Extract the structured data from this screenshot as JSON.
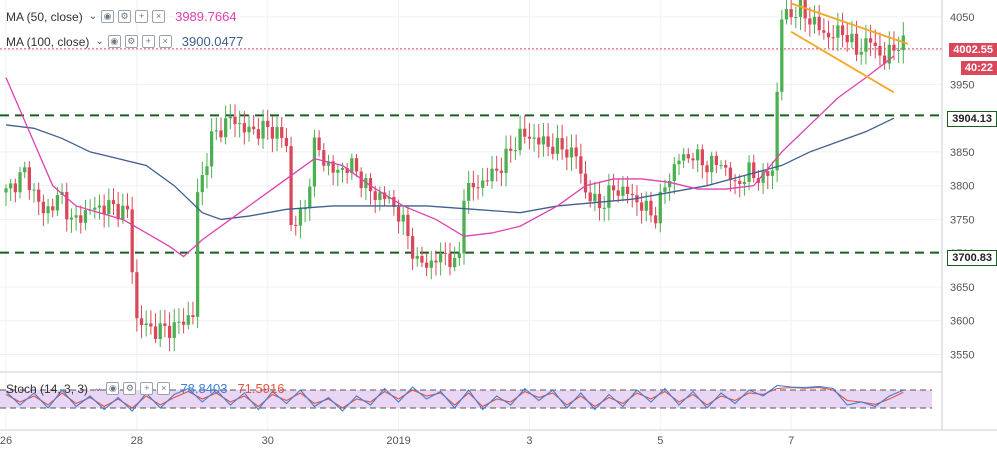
{
  "chart_data": {
    "type": "candlestick",
    "price_axis": {
      "ylim": [
        3530,
        4075
      ],
      "ticks": [
        3550,
        3600,
        3650,
        3700,
        3750,
        3800,
        3850,
        3900,
        3950,
        4000,
        4050
      ]
    },
    "time_axis": {
      "labels": [
        "26",
        "28",
        "30",
        "2019",
        "3",
        "5",
        "7"
      ]
    },
    "last_price": "4002.55",
    "countdown": "40:22",
    "support_resistance": [
      {
        "label": "3904.13",
        "value": 3904.13,
        "color": "#1b5e20"
      },
      {
        "label": "3700.83",
        "value": 3700.83,
        "color": "#1b5e20"
      }
    ],
    "moving_averages": [
      {
        "name": "MA (50, close)",
        "value": "3989.7664",
        "color": "#e040b0"
      },
      {
        "name": "MA (100, close)",
        "value": "3900.0477",
        "color": "#3f5f8f"
      }
    ],
    "price_path": [
      [
        0,
        3790
      ],
      [
        4,
        3820
      ],
      [
        8,
        3760
      ],
      [
        12,
        3785
      ],
      [
        14,
        3745
      ],
      [
        18,
        3765
      ],
      [
        22,
        3770
      ],
      [
        26,
        3760
      ],
      [
        28,
        3600
      ],
      [
        32,
        3585
      ],
      [
        36,
        3590
      ],
      [
        40,
        3610
      ],
      [
        41,
        3785
      ],
      [
        44,
        3870
      ],
      [
        48,
        3900
      ],
      [
        52,
        3880
      ],
      [
        55,
        3885
      ],
      [
        58,
        3880
      ],
      [
        60,
        3860
      ],
      [
        61,
        3740
      ],
      [
        64,
        3765
      ],
      [
        66,
        3860
      ],
      [
        70,
        3820
      ],
      [
        74,
        3830
      ],
      [
        78,
        3790
      ],
      [
        82,
        3780
      ],
      [
        85,
        3745
      ],
      [
        88,
        3685
      ],
      [
        91,
        3685
      ],
      [
        94,
        3700
      ],
      [
        96,
        3680
      ],
      [
        97,
        3700
      ],
      [
        98,
        3790
      ],
      [
        102,
        3805
      ],
      [
        106,
        3830
      ],
      [
        110,
        3875
      ],
      [
        113,
        3870
      ],
      [
        116,
        3860
      ],
      [
        119,
        3855
      ],
      [
        122,
        3845
      ],
      [
        124,
        3790
      ],
      [
        127,
        3770
      ],
      [
        130,
        3795
      ],
      [
        133,
        3790
      ],
      [
        136,
        3770
      ],
      [
        139,
        3755
      ],
      [
        141,
        3800
      ],
      [
        144,
        3840
      ],
      [
        147,
        3845
      ],
      [
        150,
        3830
      ],
      [
        153,
        3835
      ],
      [
        156,
        3800
      ],
      [
        159,
        3820
      ],
      [
        162,
        3810
      ],
      [
        164,
        3825
      ],
      [
        166,
        4050
      ],
      [
        170,
        4060
      ],
      [
        173,
        4040
      ],
      [
        176,
        4020
      ],
      [
        179,
        4030
      ],
      [
        182,
        4000
      ],
      [
        185,
        4015
      ],
      [
        188,
        3985
      ],
      [
        190,
        4008
      ]
    ],
    "ma50": [
      [
        0,
        3960
      ],
      [
        5,
        3880
      ],
      [
        10,
        3800
      ],
      [
        15,
        3770
      ],
      [
        20,
        3760
      ],
      [
        25,
        3750
      ],
      [
        30,
        3730
      ],
      [
        35,
        3710
      ],
      [
        38,
        3695
      ],
      [
        42,
        3720
      ],
      [
        50,
        3760
      ],
      [
        58,
        3800
      ],
      [
        66,
        3840
      ],
      [
        72,
        3830
      ],
      [
        78,
        3800
      ],
      [
        85,
        3770
      ],
      [
        92,
        3750
      ],
      [
        98,
        3725
      ],
      [
        104,
        3730
      ],
      [
        110,
        3740
      ],
      [
        118,
        3770
      ],
      [
        124,
        3800
      ],
      [
        130,
        3810
      ],
      [
        136,
        3810
      ],
      [
        142,
        3805
      ],
      [
        148,
        3795
      ],
      [
        154,
        3795
      ],
      [
        160,
        3800
      ],
      [
        166,
        3850
      ],
      [
        172,
        3890
      ],
      [
        178,
        3930
      ],
      [
        184,
        3960
      ],
      [
        190,
        3992
      ]
    ],
    "ma100": [
      [
        0,
        3890
      ],
      [
        6,
        3885
      ],
      [
        12,
        3870
      ],
      [
        18,
        3850
      ],
      [
        24,
        3840
      ],
      [
        30,
        3830
      ],
      [
        36,
        3800
      ],
      [
        42,
        3760
      ],
      [
        46,
        3750
      ],
      [
        52,
        3755
      ],
      [
        60,
        3765
      ],
      [
        70,
        3770
      ],
      [
        80,
        3770
      ],
      [
        90,
        3770
      ],
      [
        100,
        3765
      ],
      [
        110,
        3760
      ],
      [
        118,
        3770
      ],
      [
        126,
        3775
      ],
      [
        134,
        3780
      ],
      [
        142,
        3790
      ],
      [
        150,
        3800
      ],
      [
        158,
        3815
      ],
      [
        166,
        3830
      ],
      [
        172,
        3850
      ],
      [
        178,
        3865
      ],
      [
        184,
        3880
      ],
      [
        190,
        3900
      ]
    ],
    "channel": [
      {
        "from": [
          168,
          4070
        ],
        "to": [
          193,
          4010
        ]
      },
      {
        "from": [
          168,
          4028
        ],
        "to": [
          190,
          3938
        ]
      }
    ],
    "stochastic": {
      "name": "Stoch (14, 3, 3)",
      "k_value": "78.8403",
      "d_value": "71.5916",
      "k_color": "#3f7fd6",
      "d_color": "#e5533d",
      "ylim": [
        0,
        100
      ],
      "bands": [
        20,
        80
      ],
      "k": [
        [
          0,
          75
        ],
        [
          3,
          30
        ],
        [
          6,
          70
        ],
        [
          9,
          20
        ],
        [
          12,
          80
        ],
        [
          15,
          25
        ],
        [
          18,
          60
        ],
        [
          21,
          15
        ],
        [
          24,
          55
        ],
        [
          27,
          10
        ],
        [
          30,
          70
        ],
        [
          33,
          20
        ],
        [
          36,
          65
        ],
        [
          39,
          85
        ],
        [
          42,
          40
        ],
        [
          45,
          80
        ],
        [
          48,
          30
        ],
        [
          51,
          70
        ],
        [
          54,
          15
        ],
        [
          57,
          75
        ],
        [
          60,
          35
        ],
        [
          63,
          80
        ],
        [
          66,
          25
        ],
        [
          69,
          55
        ],
        [
          72,
          10
        ],
        [
          75,
          60
        ],
        [
          78,
          30
        ],
        [
          81,
          85
        ],
        [
          84,
          40
        ],
        [
          87,
          90
        ],
        [
          90,
          50
        ],
        [
          93,
          75
        ],
        [
          96,
          20
        ],
        [
          99,
          80
        ],
        [
          102,
          15
        ],
        [
          105,
          60
        ],
        [
          108,
          30
        ],
        [
          111,
          85
        ],
        [
          114,
          45
        ],
        [
          117,
          80
        ],
        [
          120,
          20
        ],
        [
          123,
          70
        ],
        [
          126,
          15
        ],
        [
          129,
          65
        ],
        [
          132,
          25
        ],
        [
          135,
          80
        ],
        [
          138,
          40
        ],
        [
          141,
          85
        ],
        [
          144,
          30
        ],
        [
          147,
          75
        ],
        [
          150,
          20
        ],
        [
          153,
          70
        ],
        [
          156,
          35
        ],
        [
          159,
          80
        ],
        [
          162,
          60
        ],
        [
          165,
          95
        ],
        [
          168,
          90
        ],
        [
          171,
          88
        ],
        [
          174,
          92
        ],
        [
          177,
          85
        ],
        [
          180,
          30
        ],
        [
          183,
          40
        ],
        [
          186,
          25
        ],
        [
          189,
          60
        ],
        [
          192,
          79
        ]
      ],
      "d": [
        [
          0,
          65
        ],
        [
          3,
          40
        ],
        [
          6,
          60
        ],
        [
          9,
          30
        ],
        [
          12,
          70
        ],
        [
          15,
          35
        ],
        [
          18,
          55
        ],
        [
          21,
          25
        ],
        [
          24,
          50
        ],
        [
          27,
          20
        ],
        [
          30,
          60
        ],
        [
          33,
          30
        ],
        [
          36,
          55
        ],
        [
          39,
          75
        ],
        [
          42,
          50
        ],
        [
          45,
          70
        ],
        [
          48,
          40
        ],
        [
          51,
          60
        ],
        [
          54,
          25
        ],
        [
          57,
          65
        ],
        [
          60,
          45
        ],
        [
          63,
          70
        ],
        [
          66,
          35
        ],
        [
          69,
          50
        ],
        [
          72,
          20
        ],
        [
          75,
          50
        ],
        [
          78,
          40
        ],
        [
          81,
          75
        ],
        [
          84,
          50
        ],
        [
          87,
          80
        ],
        [
          90,
          60
        ],
        [
          93,
          70
        ],
        [
          96,
          30
        ],
        [
          99,
          70
        ],
        [
          102,
          25
        ],
        [
          105,
          50
        ],
        [
          108,
          40
        ],
        [
          111,
          75
        ],
        [
          114,
          55
        ],
        [
          117,
          70
        ],
        [
          120,
          30
        ],
        [
          123,
          60
        ],
        [
          126,
          25
        ],
        [
          129,
          55
        ],
        [
          132,
          35
        ],
        [
          135,
          70
        ],
        [
          138,
          50
        ],
        [
          141,
          75
        ],
        [
          144,
          40
        ],
        [
          147,
          65
        ],
        [
          150,
          30
        ],
        [
          153,
          60
        ],
        [
          156,
          45
        ],
        [
          159,
          70
        ],
        [
          162,
          65
        ],
        [
          165,
          85
        ],
        [
          168,
          88
        ],
        [
          171,
          86
        ],
        [
          174,
          88
        ],
        [
          177,
          80
        ],
        [
          180,
          45
        ],
        [
          183,
          40
        ],
        [
          186,
          32
        ],
        [
          189,
          50
        ],
        [
          192,
          72
        ]
      ]
    }
  },
  "ui": {
    "ma50_label": "MA (50, close)",
    "ma100_label": "MA (100, close)",
    "stoch_label": "Stoch (14, 3, 3)",
    "colors": {
      "up": "#4caf50",
      "down": "#d9475a",
      "grid": "#eef1f4",
      "axis": "#555555",
      "channel": "#f5a623",
      "price_line": "#d9475a",
      "stoch_bg": "#e9d6f5"
    }
  }
}
